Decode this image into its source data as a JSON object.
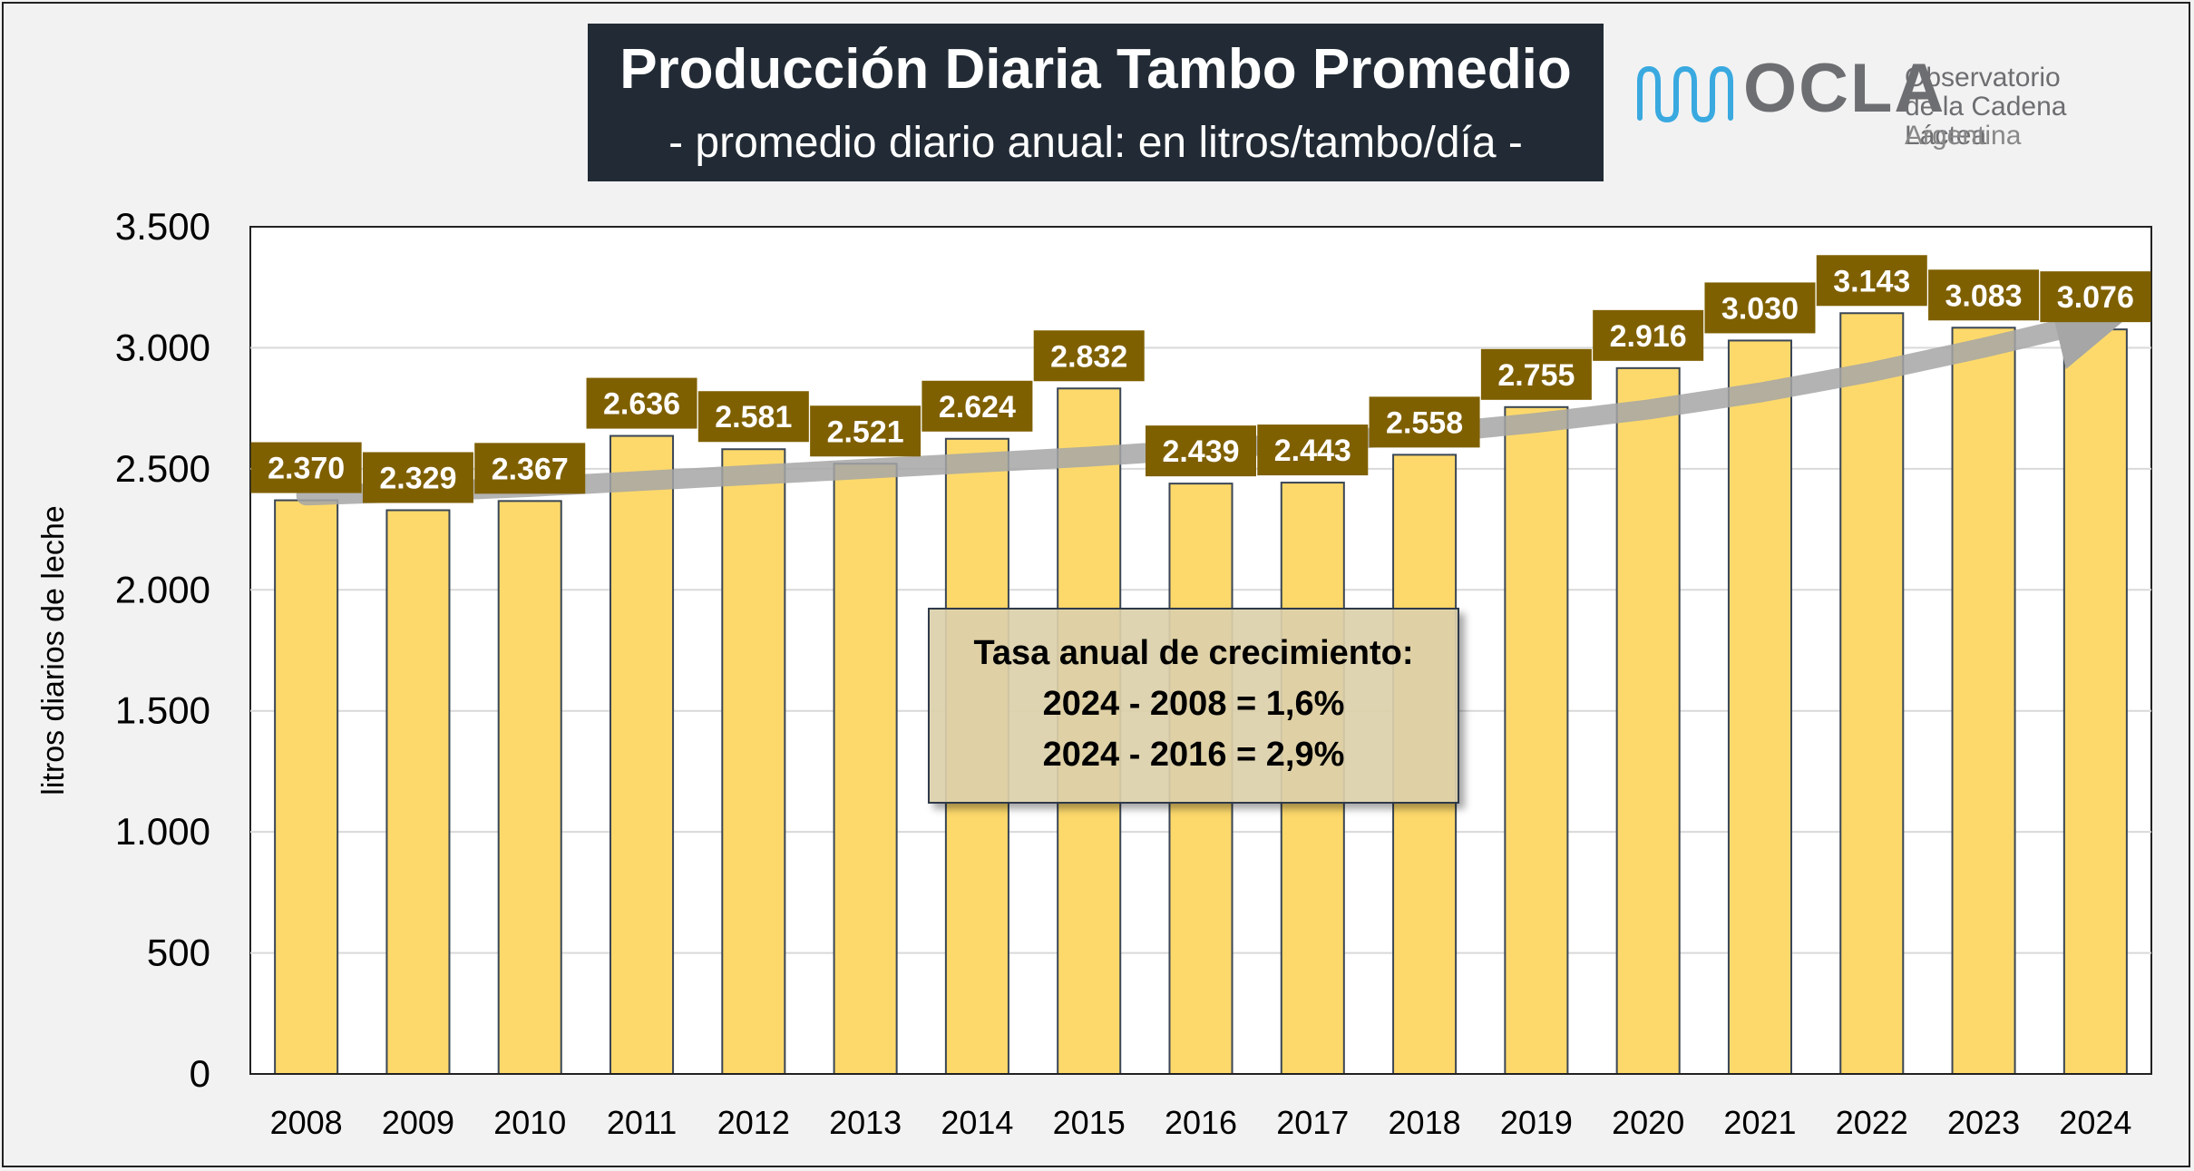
{
  "title": "Producción Diaria Tambo Promedio",
  "subtitle": "- promedio diario anual: en litros/tambo/día -",
  "logo": {
    "name": "OCLA",
    "line1": "Observatorio",
    "line2": "de la Cadena Láctea",
    "line3": "Argentina"
  },
  "growth_box": {
    "heading": "Tasa anual de crecimiento:",
    "line1": "2024 - 2008 = 1,6%",
    "line2": "2024 - 2016 = 2,9%"
  },
  "colors": {
    "bar": "#fdd96b",
    "label_bg": "#7f6000",
    "title_bg": "#222b35",
    "trend": "#a6a6a6"
  },
  "chart_data": {
    "type": "bar",
    "title": "Producción Diaria Tambo Promedio",
    "subtitle": "- promedio diario anual: en litros/tambo/día -",
    "xlabel": "",
    "ylabel": "litros diarios de leche",
    "ylim": [
      0,
      3500
    ],
    "yticks": [
      0,
      500,
      1000,
      1500,
      2000,
      2500,
      3000,
      3500
    ],
    "ytick_labels": [
      "0",
      "500",
      "1.000",
      "1.500",
      "2.000",
      "2.500",
      "3.000",
      "3.500"
    ],
    "categories": [
      "2008",
      "2009",
      "2010",
      "2011",
      "2012",
      "2013",
      "2014",
      "2015",
      "2016",
      "2017",
      "2018",
      "2019",
      "2020",
      "2021",
      "2022",
      "2023",
      "2024"
    ],
    "values": [
      2370,
      2329,
      2367,
      2636,
      2581,
      2521,
      2624,
      2832,
      2439,
      2443,
      2558,
      2755,
      2916,
      3030,
      3143,
      3083,
      3076
    ],
    "value_labels": [
      "2.370",
      "2.329",
      "2.367",
      "2.636",
      "2.581",
      "2.521",
      "2.624",
      "2.832",
      "2.439",
      "2.443",
      "2.558",
      "2.755",
      "2.916",
      "3.030",
      "3.143",
      "3.083",
      "3.076"
    ],
    "trend": [
      2390,
      2405,
      2425,
      2450,
      2475,
      2500,
      2525,
      2550,
      2580,
      2610,
      2645,
      2690,
      2745,
      2815,
      2900,
      3000,
      3110
    ],
    "grid": true,
    "legend": "none"
  }
}
